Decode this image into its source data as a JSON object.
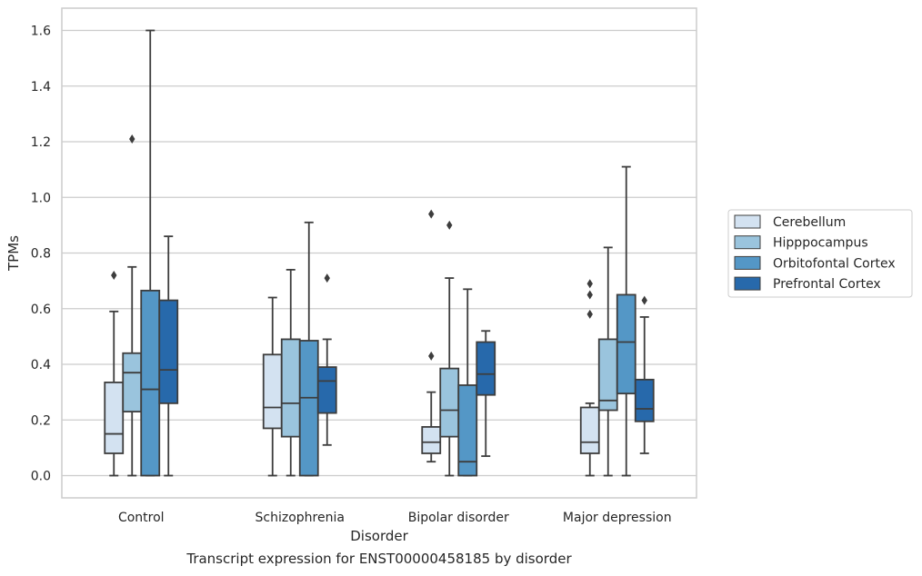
{
  "chart_data": {
    "type": "box",
    "caption": "Transcript expression for ENST00000458185 by disorder",
    "xlabel": "Disorder",
    "ylabel": "TPMs",
    "ylim": [
      -0.08,
      1.68
    ],
    "yticks": [
      0.0,
      0.2,
      0.4,
      0.6,
      0.8,
      1.0,
      1.2,
      1.4,
      1.6
    ],
    "ytick_labels": [
      "0.0",
      "0.2",
      "0.4",
      "0.6",
      "0.8",
      "1.0",
      "1.2",
      "1.4",
      "1.6"
    ],
    "grid": true,
    "legend_position": "right",
    "categories": [
      "Control",
      "Schizophrenia",
      "Bipolar disorder",
      "Major depression"
    ],
    "series": [
      {
        "name": "Cerebellum",
        "color": "#d3e2f1",
        "boxes": [
          {
            "min": 0.0,
            "q1": 0.08,
            "median": 0.15,
            "q3": 0.335,
            "max": 0.59,
            "outliers": [
              0.72
            ]
          },
          {
            "min": 0.0,
            "q1": 0.17,
            "median": 0.245,
            "q3": 0.435,
            "max": 0.64,
            "outliers": []
          },
          {
            "min": 0.05,
            "q1": 0.08,
            "median": 0.12,
            "q3": 0.175,
            "max": 0.3,
            "outliers": [
              0.43,
              0.94
            ]
          },
          {
            "min": 0.0,
            "q1": 0.08,
            "median": 0.12,
            "q3": 0.245,
            "max": 0.26,
            "outliers": [
              0.58,
              0.65,
              0.69
            ]
          }
        ]
      },
      {
        "name": "Hipppocampus",
        "color": "#9ac4dd",
        "boxes": [
          {
            "min": 0.0,
            "q1": 0.23,
            "median": 0.37,
            "q3": 0.44,
            "max": 0.75,
            "outliers": [
              1.21
            ]
          },
          {
            "min": 0.0,
            "q1": 0.14,
            "median": 0.26,
            "q3": 0.49,
            "max": 0.74,
            "outliers": []
          },
          {
            "min": 0.0,
            "q1": 0.14,
            "median": 0.235,
            "q3": 0.385,
            "max": 0.71,
            "outliers": [
              0.9
            ]
          },
          {
            "min": 0.0,
            "q1": 0.235,
            "median": 0.27,
            "q3": 0.49,
            "max": 0.82,
            "outliers": []
          }
        ]
      },
      {
        "name": "Orbitofontal Cortex",
        "color": "#5497c6",
        "boxes": [
          {
            "min": 0.0,
            "q1": 0.0,
            "median": 0.31,
            "q3": 0.665,
            "max": 1.6,
            "outliers": []
          },
          {
            "min": 0.0,
            "q1": 0.0,
            "median": 0.28,
            "q3": 0.485,
            "max": 0.91,
            "outliers": []
          },
          {
            "min": 0.0,
            "q1": 0.0,
            "median": 0.05,
            "q3": 0.325,
            "max": 0.67,
            "outliers": []
          },
          {
            "min": 0.0,
            "q1": 0.295,
            "median": 0.48,
            "q3": 0.65,
            "max": 1.11,
            "outliers": []
          }
        ]
      },
      {
        "name": "Prefrontal Cortex",
        "color": "#2769ab",
        "boxes": [
          {
            "min": 0.0,
            "q1": 0.26,
            "median": 0.38,
            "q3": 0.63,
            "max": 0.86,
            "outliers": []
          },
          {
            "min": 0.11,
            "q1": 0.225,
            "median": 0.34,
            "q3": 0.39,
            "max": 0.49,
            "outliers": [
              0.71
            ]
          },
          {
            "min": 0.07,
            "q1": 0.29,
            "median": 0.365,
            "q3": 0.48,
            "max": 0.52,
            "outliers": []
          },
          {
            "min": 0.08,
            "q1": 0.195,
            "median": 0.24,
            "q3": 0.345,
            "max": 0.57,
            "outliers": [
              0.63
            ]
          }
        ]
      }
    ]
  }
}
